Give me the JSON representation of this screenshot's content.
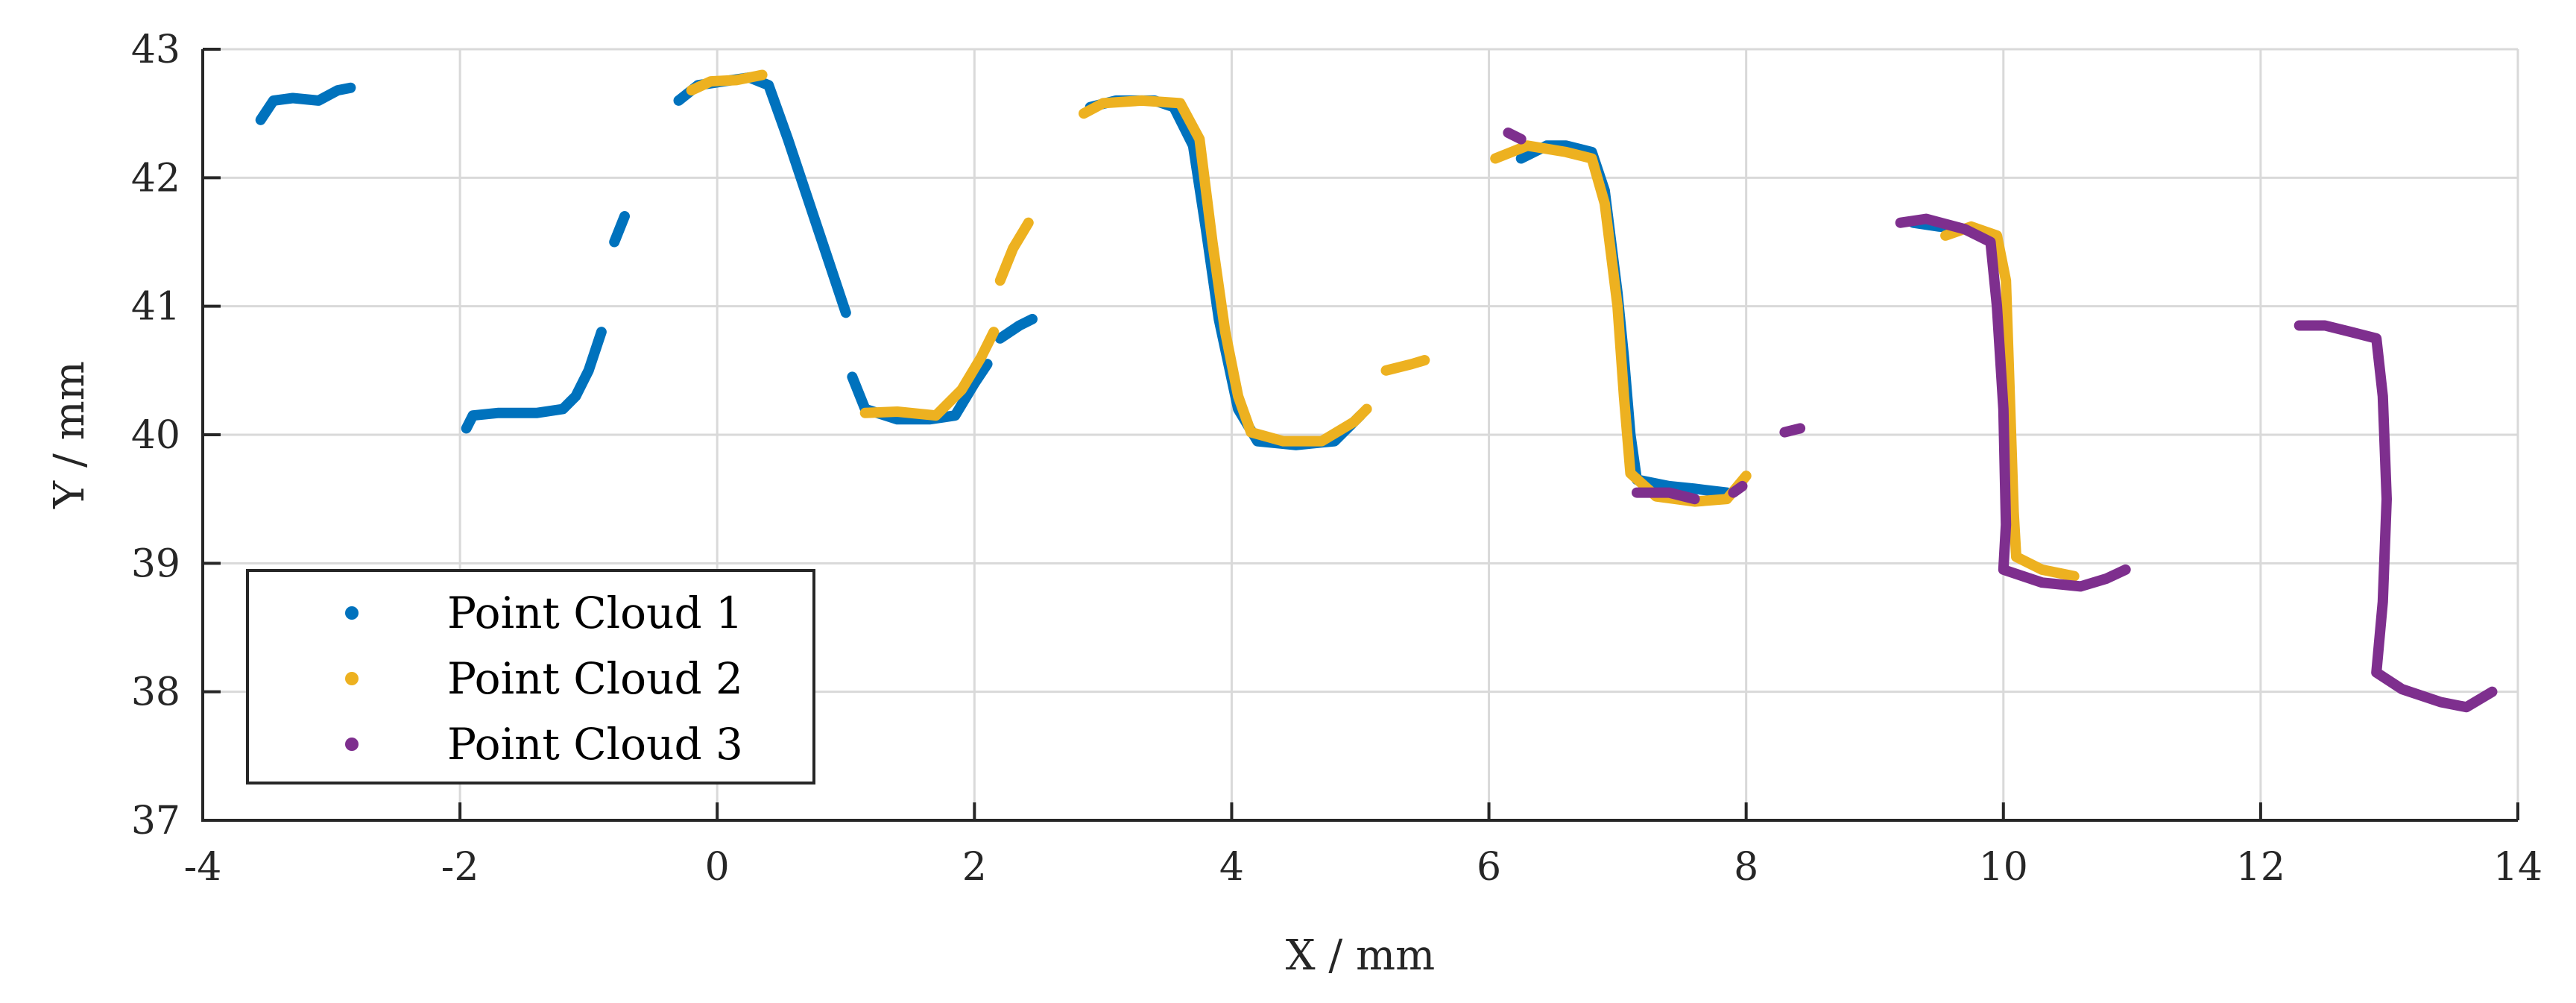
{
  "chart_data": {
    "type": "scatter",
    "title": "",
    "xlabel": "X / mm",
    "ylabel": "Y / mm",
    "xlim": [
      -4,
      14
    ],
    "ylim": [
      37,
      43
    ],
    "xticks": [
      -4,
      -2,
      0,
      2,
      4,
      6,
      8,
      10,
      12,
      14
    ],
    "yticks": [
      37,
      38,
      39,
      40,
      41,
      42,
      43
    ],
    "xtick_labels": [
      "-4",
      "-2",
      "0",
      "2",
      "4",
      "6",
      "8",
      "10",
      "12",
      "14"
    ],
    "ytick_labels": [
      "37",
      "38",
      "39",
      "40",
      "41",
      "42",
      "43"
    ],
    "grid": true,
    "legend_position": "bottom-left",
    "series": [
      {
        "name": "Point Cloud 1",
        "color": "#0072BD",
        "segments": [
          [
            [
              -3.55,
              42.45
            ],
            [
              -3.45,
              42.6
            ],
            [
              -3.3,
              42.62
            ],
            [
              -3.1,
              42.6
            ],
            [
              -2.95,
              42.68
            ],
            [
              -2.85,
              42.7
            ]
          ],
          [
            [
              -1.95,
              40.05
            ],
            [
              -1.9,
              40.15
            ],
            [
              -1.7,
              40.17
            ],
            [
              -1.4,
              40.17
            ],
            [
              -1.2,
              40.2
            ],
            [
              -1.1,
              40.3
            ],
            [
              -1.0,
              40.5
            ],
            [
              -0.9,
              40.8
            ]
          ],
          [
            [
              -0.8,
              41.5
            ],
            [
              -0.72,
              41.7
            ]
          ],
          [
            [
              -0.3,
              42.6
            ],
            [
              -0.15,
              42.72
            ],
            [
              0.05,
              42.75
            ],
            [
              0.25,
              42.78
            ],
            [
              0.4,
              42.72
            ],
            [
              0.55,
              42.3
            ],
            [
              0.7,
              41.85
            ],
            [
              0.85,
              41.4
            ],
            [
              1.0,
              40.95
            ]
          ],
          [
            [
              1.05,
              40.45
            ],
            [
              1.15,
              40.2
            ],
            [
              1.4,
              40.12
            ],
            [
              1.65,
              40.12
            ],
            [
              1.85,
              40.15
            ],
            [
              2.0,
              40.4
            ],
            [
              2.1,
              40.55
            ]
          ],
          [
            [
              2.2,
              40.75
            ],
            [
              2.35,
              40.85
            ],
            [
              2.45,
              40.9
            ]
          ],
          [
            [
              2.9,
              42.55
            ],
            [
              3.1,
              42.6
            ],
            [
              3.4,
              42.6
            ],
            [
              3.55,
              42.55
            ],
            [
              3.7,
              42.25
            ],
            [
              3.8,
              41.6
            ],
            [
              3.9,
              40.9
            ],
            [
              4.05,
              40.2
            ],
            [
              4.2,
              39.95
            ],
            [
              4.5,
              39.92
            ],
            [
              4.8,
              39.95
            ],
            [
              5.0,
              40.15
            ]
          ],
          [
            [
              6.25,
              42.15
            ],
            [
              6.45,
              42.25
            ],
            [
              6.6,
              42.25
            ],
            [
              6.8,
              42.2
            ],
            [
              6.9,
              41.9
            ],
            [
              7.0,
              41.1
            ],
            [
              7.05,
              40.6
            ],
            [
              7.1,
              40.0
            ],
            [
              7.15,
              39.65
            ],
            [
              7.4,
              39.6
            ],
            [
              7.6,
              39.58
            ],
            [
              7.85,
              39.55
            ]
          ],
          [
            [
              9.3,
              41.65
            ],
            [
              9.5,
              41.62
            ],
            [
              9.7,
              41.6
            ],
            [
              9.9,
              41.55
            ]
          ]
        ]
      },
      {
        "name": "Point Cloud 2",
        "color": "#EDB120",
        "segments": [
          [
            [
              -0.2,
              42.68
            ],
            [
              -0.05,
              42.75
            ],
            [
              0.15,
              42.76
            ],
            [
              0.35,
              42.8
            ]
          ],
          [
            [
              1.15,
              40.17
            ],
            [
              1.4,
              40.18
            ],
            [
              1.7,
              40.15
            ],
            [
              1.9,
              40.35
            ],
            [
              2.05,
              40.6
            ],
            [
              2.15,
              40.8
            ]
          ],
          [
            [
              2.2,
              41.2
            ],
            [
              2.3,
              41.45
            ],
            [
              2.42,
              41.65
            ]
          ],
          [
            [
              2.85,
              42.5
            ],
            [
              3.0,
              42.58
            ],
            [
              3.3,
              42.6
            ],
            [
              3.6,
              42.58
            ],
            [
              3.75,
              42.3
            ],
            [
              3.85,
              41.5
            ],
            [
              3.95,
              40.8
            ],
            [
              4.05,
              40.3
            ],
            [
              4.15,
              40.02
            ],
            [
              4.4,
              39.95
            ],
            [
              4.7,
              39.95
            ],
            [
              4.95,
              40.1
            ],
            [
              5.05,
              40.2
            ]
          ],
          [
            [
              5.2,
              40.5
            ],
            [
              5.4,
              40.55
            ],
            [
              5.5,
              40.58
            ]
          ],
          [
            [
              6.05,
              42.15
            ],
            [
              6.3,
              42.25
            ],
            [
              6.6,
              42.2
            ],
            [
              6.8,
              42.15
            ],
            [
              6.9,
              41.8
            ],
            [
              7.0,
              41.0
            ],
            [
              7.05,
              40.3
            ],
            [
              7.1,
              39.7
            ],
            [
              7.3,
              39.52
            ],
            [
              7.6,
              39.48
            ],
            [
              7.85,
              39.5
            ],
            [
              8.0,
              39.68
            ]
          ],
          [
            [
              9.55,
              41.55
            ],
            [
              9.75,
              41.62
            ],
            [
              9.95,
              41.55
            ],
            [
              10.02,
              41.2
            ],
            [
              10.05,
              40.3
            ],
            [
              10.08,
              39.4
            ],
            [
              10.1,
              39.05
            ],
            [
              10.3,
              38.95
            ],
            [
              10.55,
              38.9
            ]
          ]
        ]
      },
      {
        "name": "Point Cloud 3",
        "color": "#7E2F8E",
        "segments": [
          [
            [
              6.15,
              42.35
            ],
            [
              6.25,
              42.3
            ]
          ],
          [
            [
              7.15,
              39.55
            ],
            [
              7.4,
              39.55
            ],
            [
              7.6,
              39.5
            ]
          ],
          [
            [
              7.9,
              39.55
            ],
            [
              7.97,
              39.6
            ]
          ],
          [
            [
              8.3,
              40.02
            ],
            [
              8.42,
              40.05
            ]
          ],
          [
            [
              9.2,
              41.65
            ],
            [
              9.4,
              41.68
            ],
            [
              9.7,
              41.6
            ],
            [
              9.9,
              41.5
            ],
            [
              9.95,
              41.0
            ],
            [
              10.0,
              40.2
            ],
            [
              10.02,
              39.3
            ],
            [
              10.0,
              38.95
            ],
            [
              10.3,
              38.85
            ],
            [
              10.6,
              38.82
            ],
            [
              10.8,
              38.88
            ],
            [
              10.95,
              38.95
            ]
          ],
          [
            [
              12.3,
              40.85
            ],
            [
              12.5,
              40.85
            ],
            [
              12.7,
              40.8
            ],
            [
              12.9,
              40.75
            ],
            [
              12.95,
              40.3
            ],
            [
              12.98,
              39.5
            ],
            [
              12.95,
              38.7
            ],
            [
              12.9,
              38.15
            ],
            [
              13.1,
              38.02
            ],
            [
              13.4,
              37.92
            ],
            [
              13.6,
              37.88
            ],
            [
              13.8,
              38.0
            ]
          ]
        ]
      }
    ]
  }
}
